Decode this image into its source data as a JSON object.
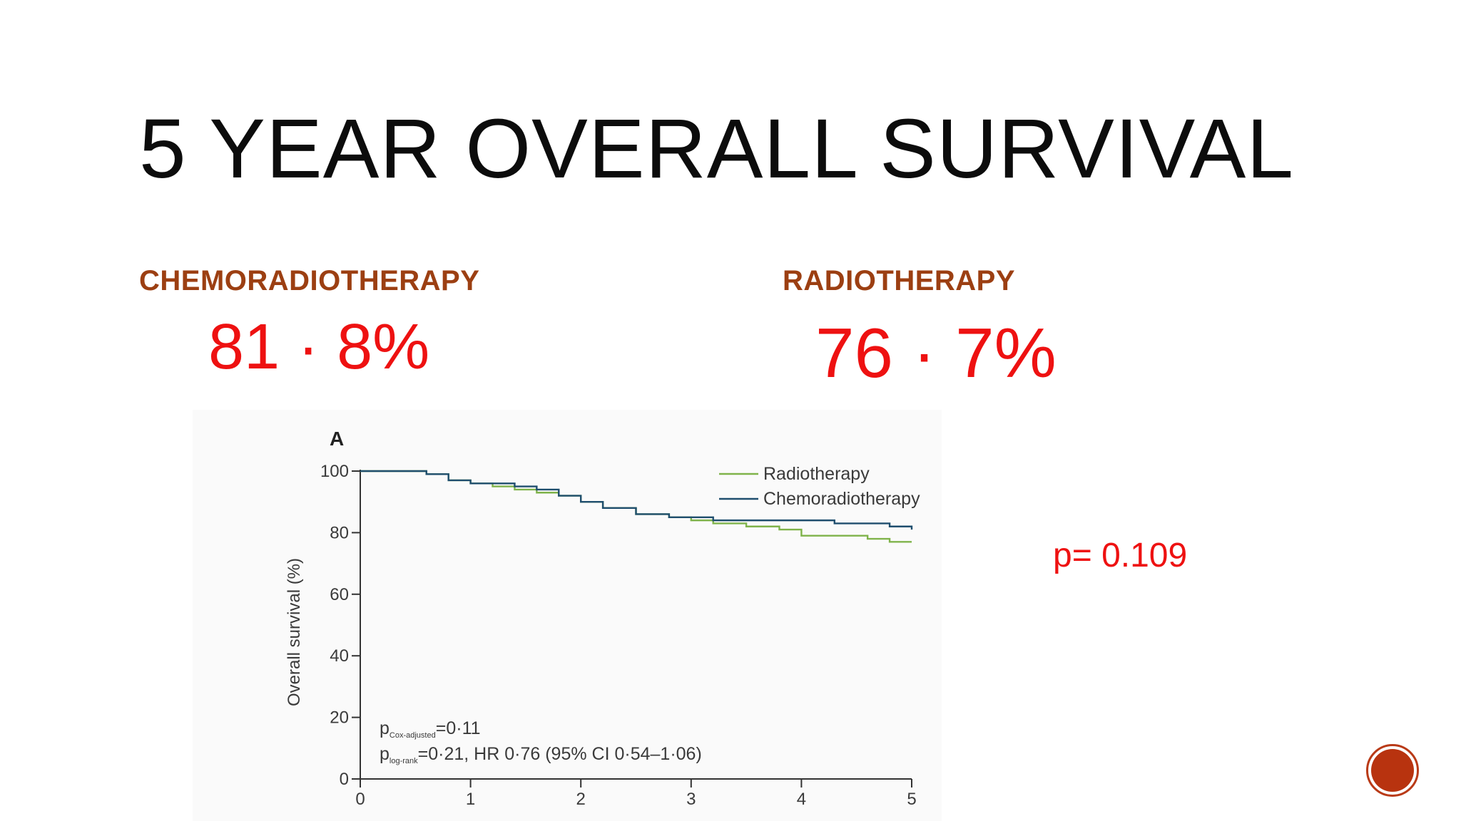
{
  "slide": {
    "title": "5 YEAR OVERALL SURVIVAL",
    "left_column": {
      "heading": "CHEMORADIOTHERAPY",
      "value": "81 · 8%"
    },
    "right_column": {
      "heading": "RADIOTHERAPY",
      "value": "76 · 7%"
    },
    "p_value": "p= 0.109",
    "accent_color": "#ee1111",
    "heading_color": "#9c3f12",
    "nav_button_color": "#b8330f"
  },
  "chart_data": {
    "type": "line",
    "panel_label": "A",
    "ylabel": "Overall survival (%)",
    "xlabel": "",
    "xlim": [
      0,
      5
    ],
    "ylim": [
      0,
      100
    ],
    "x_ticks": [
      0,
      1,
      2,
      3,
      4,
      5
    ],
    "y_ticks": [
      0,
      20,
      40,
      60,
      80,
      100
    ],
    "grid": false,
    "legend_position": "top-right",
    "annotations": [
      {
        "main": "p",
        "sub": "Cox-adjusted",
        "rest": "=0·11"
      },
      {
        "main": "p",
        "sub": "log-rank",
        "rest": "=0·21, HR 0·76 (95% CI 0·54–1·06)"
      }
    ],
    "series": [
      {
        "name": "Radiotherapy",
        "color": "#7fb34a",
        "x": [
          0,
          0.3,
          0.6,
          0.8,
          1.0,
          1.2,
          1.4,
          1.6,
          1.8,
          2.0,
          2.2,
          2.5,
          2.8,
          3.0,
          3.2,
          3.5,
          3.8,
          4.0,
          4.3,
          4.6,
          4.8,
          5.0
        ],
        "y": [
          100,
          100,
          99,
          97,
          96,
          95,
          94,
          93,
          92,
          90,
          88,
          86,
          85,
          84,
          83,
          82,
          81,
          79,
          79,
          78,
          77,
          77
        ]
      },
      {
        "name": "Chemoradiotherapy",
        "color": "#1f4e6e",
        "x": [
          0,
          0.3,
          0.6,
          0.8,
          1.0,
          1.2,
          1.4,
          1.6,
          1.8,
          2.0,
          2.2,
          2.5,
          2.8,
          3.0,
          3.2,
          3.5,
          3.8,
          4.0,
          4.3,
          4.6,
          4.8,
          4.9,
          5.0
        ],
        "y": [
          100,
          100,
          99,
          97,
          96,
          96,
          95,
          94,
          92,
          90,
          88,
          86,
          85,
          85,
          84,
          84,
          84,
          84,
          83,
          83,
          82,
          82,
          81
        ]
      }
    ]
  }
}
